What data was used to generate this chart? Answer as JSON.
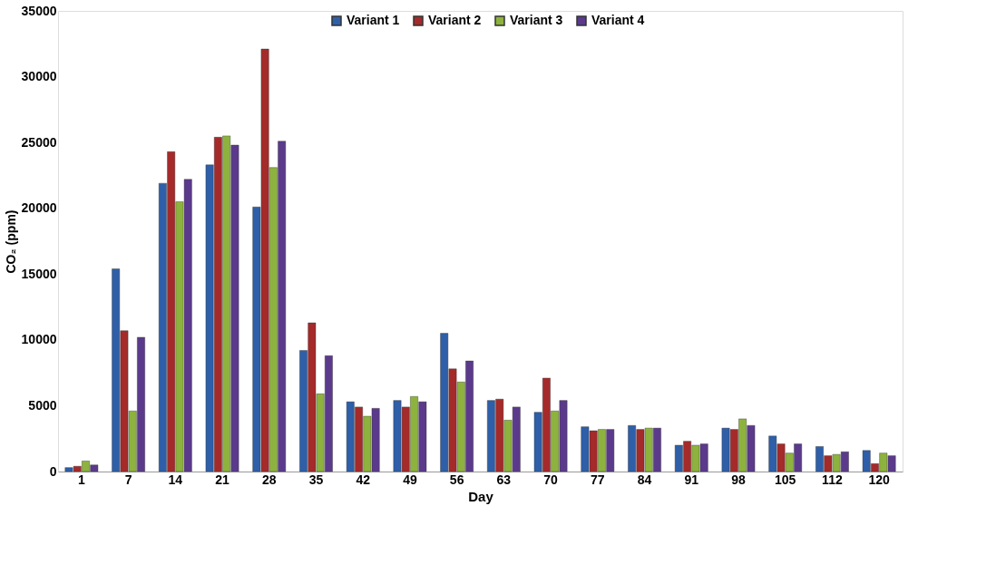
{
  "chart_data": {
    "type": "bar",
    "xlabel": "Day",
    "ylabel": "CO₂ (ppm)",
    "categories": [
      "1",
      "7",
      "14",
      "21",
      "28",
      "35",
      "42",
      "49",
      "56",
      "63",
      "70",
      "77",
      "84",
      "91",
      "98",
      "105",
      "112",
      "120"
    ],
    "series": [
      {
        "name": "Variant 1",
        "color": "#2e5fa8",
        "values": [
          300,
          15400,
          21900,
          23300,
          20100,
          9200,
          5300,
          5400,
          10500,
          5400,
          4500,
          3400,
          3500,
          2000,
          3300,
          2700,
          1900,
          1600
        ]
      },
      {
        "name": "Variant 2",
        "color": "#a52a2a",
        "values": [
          400,
          10700,
          24300,
          25400,
          32100,
          11300,
          4900,
          4900,
          7800,
          5500,
          7100,
          3100,
          3200,
          2300,
          3200,
          2100,
          1200,
          600
        ]
      },
      {
        "name": "Variant 3",
        "color": "#8db33e",
        "values": [
          800,
          4600,
          20500,
          25500,
          23100,
          5900,
          4200,
          5700,
          6800,
          3900,
          4600,
          3200,
          3300,
          2000,
          4000,
          1400,
          1300,
          1400
        ]
      },
      {
        "name": "Variant 4",
        "color": "#5b3a8c",
        "values": [
          500,
          10200,
          22200,
          24800,
          25100,
          8800,
          4800,
          5300,
          8400,
          4900,
          5400,
          3200,
          3300,
          2100,
          3500,
          2100,
          1500,
          1200
        ]
      }
    ],
    "ylim": [
      0,
      35000
    ],
    "yticks": [
      0,
      5000,
      10000,
      15000,
      20000,
      25000,
      30000,
      35000
    ],
    "grid": false,
    "legend": "top"
  }
}
